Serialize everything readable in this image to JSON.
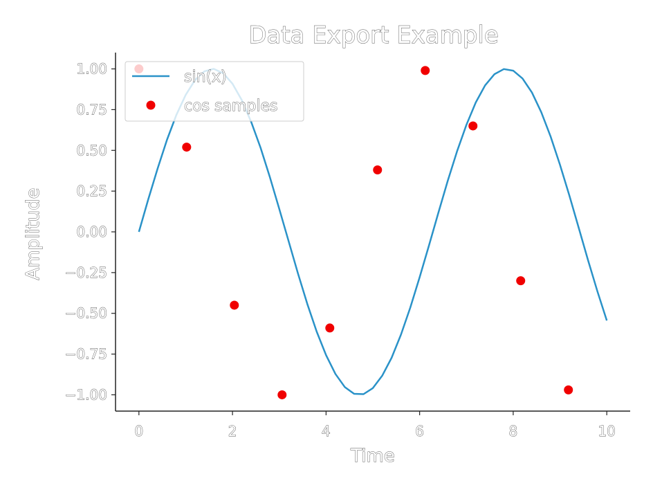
{
  "chart_data": {
    "type": "line",
    "title": "Data Export Example",
    "xlabel": "Time",
    "ylabel": "Amplitude",
    "xlim": [
      -0.5,
      10.5
    ],
    "ylim": [
      -1.1,
      1.1
    ],
    "x_ticks": [
      0,
      2,
      4,
      6,
      8,
      10
    ],
    "x_tick_labels": [
      "0",
      "2",
      "4",
      "6",
      "8",
      "10"
    ],
    "y_ticks": [
      1.0,
      0.75,
      0.5,
      0.25,
      0.0,
      -0.25,
      -0.5,
      -0.75,
      -1.0
    ],
    "y_tick_labels": [
      "1.00",
      "0.75",
      "0.50",
      "0.25",
      "0.00",
      "−0.25",
      "−0.50",
      "−0.75",
      "−1.00"
    ],
    "grid": false,
    "legend_position": "top-left",
    "series": [
      {
        "name": "sin(x)",
        "type": "line",
        "color": "#2a92c8",
        "x": [
          0.0,
          0.2,
          0.4,
          0.6,
          0.8,
          1.0,
          1.2,
          1.4,
          1.6,
          1.8,
          2.0,
          2.2,
          2.4,
          2.6,
          2.8,
          3.0,
          3.2,
          3.4,
          3.6,
          3.8,
          4.0,
          4.2,
          4.4,
          4.6,
          4.8,
          5.0,
          5.2,
          5.4,
          5.6,
          5.8,
          6.0,
          6.2,
          6.4,
          6.6,
          6.8,
          7.0,
          7.2,
          7.4,
          7.6,
          7.8,
          8.0,
          8.2,
          8.4,
          8.6,
          8.8,
          9.0,
          9.2,
          9.4,
          9.6,
          9.8,
          10.0
        ],
        "y": [
          0.0,
          0.199,
          0.389,
          0.565,
          0.717,
          0.841,
          0.932,
          0.985,
          1.0,
          0.974,
          0.909,
          0.808,
          0.675,
          0.516,
          0.335,
          0.141,
          -0.058,
          -0.256,
          -0.443,
          -0.612,
          -0.757,
          -0.872,
          -0.952,
          -0.994,
          -0.996,
          -0.959,
          -0.883,
          -0.773,
          -0.631,
          -0.465,
          -0.279,
          -0.083,
          0.117,
          0.312,
          0.494,
          0.657,
          0.794,
          0.899,
          0.968,
          0.999,
          0.989,
          0.941,
          0.855,
          0.734,
          0.585,
          0.412,
          0.223,
          0.025,
          -0.174,
          -0.366,
          -0.544
        ]
      },
      {
        "name": "cos samples",
        "type": "scatter",
        "color": "#f00000",
        "x": [
          0.0,
          1.02,
          2.04,
          3.06,
          4.08,
          5.1,
          6.12,
          7.14,
          8.16,
          9.18
        ],
        "y": [
          1.0,
          0.52,
          -0.45,
          -1.0,
          -0.59,
          0.38,
          0.99,
          0.65,
          -0.3,
          -0.97
        ]
      }
    ]
  }
}
